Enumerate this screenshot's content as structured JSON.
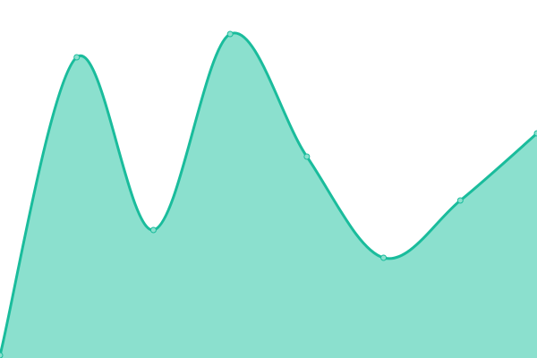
{
  "chart_data": {
    "type": "area",
    "x": [
      0,
      1,
      2,
      3,
      4,
      5,
      6,
      7
    ],
    "values": [
      3,
      336,
      143,
      362,
      225,
      112,
      176,
      251
    ],
    "ylim": [
      0,
      400
    ],
    "xlim": [
      0,
      7
    ],
    "grid": false,
    "axes_visible": false,
    "curve": "smooth",
    "colors": {
      "line": "#1abc9c",
      "fill": "#8be0ce",
      "point_fill": "#8be0ce"
    }
  }
}
